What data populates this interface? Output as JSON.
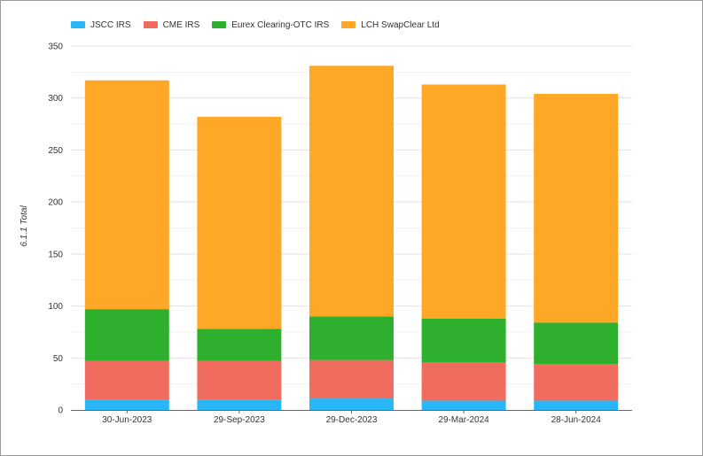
{
  "chart_data": {
    "type": "bar",
    "stacked": true,
    "title": "",
    "xlabel": "",
    "ylabel": "6.1.1 Total",
    "ylim": [
      0,
      350
    ],
    "yticks": [
      0,
      50,
      100,
      150,
      200,
      250,
      300,
      350
    ],
    "grid": true,
    "legend_position": "top-left",
    "categories": [
      "30-Jun-2023",
      "29-Sep-2023",
      "29-Dec-2023",
      "29-Mar-2024",
      "28-Jun-2024"
    ],
    "series": [
      {
        "name": "JSCC IRS",
        "color": "#29b6f6",
        "values": [
          10,
          10,
          11,
          9,
          9
        ]
      },
      {
        "name": "CME IRS",
        "color": "#ef6c5f",
        "values": [
          37,
          37,
          37,
          37,
          35
        ]
      },
      {
        "name": "Eurex Clearing-OTC IRS",
        "color": "#2eaf2e",
        "values": [
          50,
          31,
          42,
          42,
          40
        ]
      },
      {
        "name": "LCH SwapClear Ltd",
        "color": "#ffa726",
        "values": [
          220,
          204,
          241,
          225,
          220
        ]
      }
    ]
  }
}
